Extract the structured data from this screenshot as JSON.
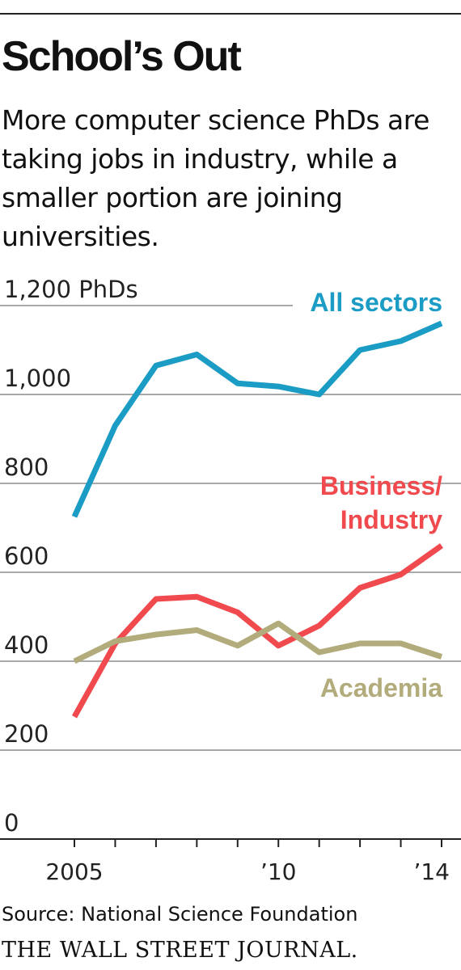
{
  "title": "School’s Out",
  "subtitle": "More computer science PhDs are taking jobs in industry, while a smaller portion are joining universities.",
  "source": "Source: National Science Foundation",
  "publisher": "THE WALL STREET JOURNAL.",
  "chart_data": {
    "type": "line",
    "x": [
      2005,
      2006,
      2007,
      2008,
      2009,
      2010,
      2011,
      2012,
      2013,
      2014
    ],
    "x_tick_values": [
      2005,
      2010,
      2014
    ],
    "x_tick_labels": [
      "2005",
      "’10",
      "’14"
    ],
    "y_tick_values": [
      0,
      200,
      400,
      600,
      800,
      1000,
      1200
    ],
    "y_tick_labels": [
      "0",
      "200",
      "400",
      "600",
      "800",
      "1,000",
      "1,200 PhDs"
    ],
    "ylim": [
      0,
      1200
    ],
    "grid": true,
    "series": [
      {
        "name": "All sectors",
        "label_lines": [
          "All sectors"
        ],
        "color": "#1a9cc4",
        "values": [
          725,
          930,
          1065,
          1090,
          1025,
          1018,
          1000,
          1100,
          1120,
          1160
        ]
      },
      {
        "name": "Business/ Industry",
        "label_lines": [
          "Business/",
          "Industry"
        ],
        "color": "#f04a4e",
        "values": [
          275,
          440,
          540,
          545,
          510,
          435,
          480,
          565,
          595,
          660
        ]
      },
      {
        "name": "Academia",
        "label_lines": [
          "Academia"
        ],
        "color": "#b2ab7c",
        "values": [
          400,
          445,
          460,
          470,
          435,
          485,
          420,
          440,
          440,
          410
        ]
      }
    ]
  }
}
